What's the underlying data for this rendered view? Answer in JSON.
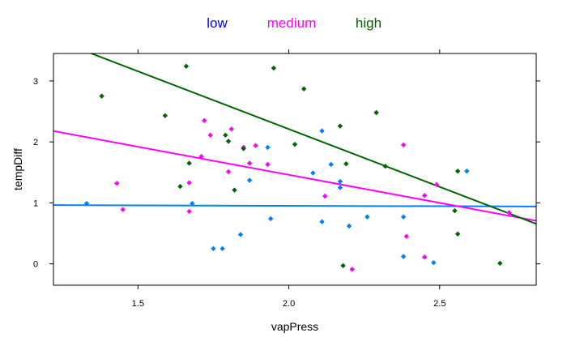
{
  "chart_data": {
    "type": "scatter",
    "xlabel": "vapPress",
    "ylabel": "tempDiff",
    "xlim": [
      1.22,
      2.82
    ],
    "ylim": [
      -0.35,
      3.45
    ],
    "x_ticks": [
      1.5,
      2.0,
      2.5
    ],
    "x_tick_labels": [
      "1.5",
      "2.0",
      "2.5"
    ],
    "y_ticks": [
      0,
      1,
      2,
      3
    ],
    "y_tick_labels": [
      "0",
      "1",
      "2",
      "3"
    ],
    "legend_position": "top",
    "grid": false,
    "series": [
      {
        "name": "low",
        "color": "#0080ff",
        "legend_color": "#0000ff",
        "points": [
          [
            1.33,
            0.99
          ],
          [
            1.68,
            0.99
          ],
          [
            1.75,
            0.25
          ],
          [
            1.78,
            0.25
          ],
          [
            1.84,
            0.48
          ],
          [
            1.87,
            1.37
          ],
          [
            1.93,
            1.91
          ],
          [
            1.94,
            0.74
          ],
          [
            2.08,
            1.49
          ],
          [
            2.11,
            2.18
          ],
          [
            2.11,
            0.69
          ],
          [
            2.14,
            1.63
          ],
          [
            2.17,
            1.35
          ],
          [
            2.17,
            1.25
          ],
          [
            2.2,
            0.62
          ],
          [
            2.26,
            0.77
          ],
          [
            2.38,
            0.77
          ],
          [
            2.38,
            0.12
          ],
          [
            2.48,
            0.02
          ],
          [
            2.59,
            1.52
          ]
        ],
        "fit": {
          "intercept": 0.98,
          "slope": -0.014
        }
      },
      {
        "name": "medium",
        "color": "#ff00ff",
        "legend_color": "#ff00ff",
        "points": [
          [
            1.43,
            1.32
          ],
          [
            1.45,
            0.89
          ],
          [
            1.67,
            0.86
          ],
          [
            1.67,
            1.33
          ],
          [
            1.71,
            1.76
          ],
          [
            1.72,
            2.35
          ],
          [
            1.74,
            2.11
          ],
          [
            1.8,
            1.51
          ],
          [
            1.81,
            2.21
          ],
          [
            1.85,
            1.91
          ],
          [
            1.87,
            1.65
          ],
          [
            1.89,
            1.94
          ],
          [
            1.93,
            1.63
          ],
          [
            2.12,
            1.11
          ],
          [
            2.21,
            -0.09
          ],
          [
            2.38,
            1.95
          ],
          [
            2.39,
            0.45
          ],
          [
            2.45,
            1.12
          ],
          [
            2.45,
            0.11
          ],
          [
            2.49,
            1.3
          ],
          [
            2.73,
            0.84
          ]
        ],
        "fit": {
          "intercept": 3.3,
          "slope": -0.92
        }
      },
      {
        "name": "high",
        "color": "#006400",
        "legend_color": "#006400",
        "points": [
          [
            1.38,
            2.75
          ],
          [
            1.59,
            2.43
          ],
          [
            1.64,
            1.27
          ],
          [
            1.66,
            3.24
          ],
          [
            1.67,
            1.65
          ],
          [
            1.79,
            2.11
          ],
          [
            1.8,
            2.01
          ],
          [
            1.82,
            1.21
          ],
          [
            1.85,
            1.89
          ],
          [
            1.95,
            3.21
          ],
          [
            2.02,
            1.96
          ],
          [
            2.05,
            2.87
          ],
          [
            2.17,
            2.26
          ],
          [
            2.18,
            -0.03
          ],
          [
            2.19,
            1.64
          ],
          [
            2.29,
            2.48
          ],
          [
            2.32,
            1.6
          ],
          [
            2.55,
            0.87
          ],
          [
            2.56,
            1.52
          ],
          [
            2.56,
            0.49
          ],
          [
            2.7,
            0.01
          ]
        ],
        "fit": {
          "intercept": 6.0,
          "slope": -1.895
        }
      }
    ]
  }
}
